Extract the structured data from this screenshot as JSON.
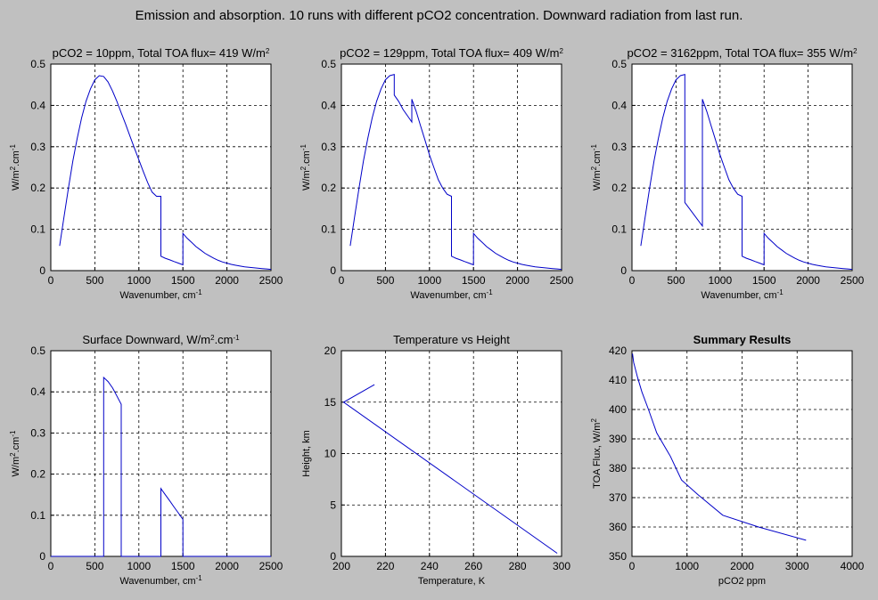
{
  "figure": {
    "title": "Emission and absorption. 10 runs with different pCO2 concentration. Downward radiation from last run."
  },
  "chart_data": [
    {
      "type": "line",
      "title": "pCO2 = 10ppm, Total TOA flux= 419 W/m",
      "title_sup": "2",
      "xlabel": "Wavenumber, cm",
      "xlabel_sup": "-1",
      "ylabel": "W/m",
      "ylabel_sup": "2",
      "ylabel_rest": ".cm",
      "ylabel_sup2": "-1",
      "xlim": [
        0,
        2500
      ],
      "ylim": [
        0,
        0.5
      ],
      "xticks": [
        "0",
        "500",
        "1000",
        "1500",
        "2000",
        "2500"
      ],
      "yticks": [
        "0",
        "0.1",
        "0.2",
        "0.3",
        "0.4",
        "0.5"
      ],
      "grid": true,
      "color": "#0000c8",
      "x": [
        100,
        150,
        200,
        250,
        300,
        350,
        400,
        450,
        500,
        550,
        600,
        650,
        700,
        750,
        800,
        850,
        900,
        950,
        1000,
        1050,
        1100,
        1150,
        1200,
        1250,
        1250,
        1300,
        1350,
        1400,
        1450,
        1500,
        1500,
        1550,
        1600,
        1650,
        1700,
        1750,
        1800,
        1850,
        1900,
        1950,
        2000,
        2050,
        2100,
        2150,
        2200,
        2250,
        2300,
        2350,
        2400,
        2450,
        2500
      ],
      "y": [
        0.06,
        0.13,
        0.2,
        0.265,
        0.32,
        0.37,
        0.41,
        0.44,
        0.462,
        0.472,
        0.47,
        0.457,
        0.435,
        0.41,
        0.382,
        0.354,
        0.325,
        0.296,
        0.268,
        0.24,
        0.213,
        0.19,
        0.18,
        0.18,
        0.035,
        0.03,
        0.026,
        0.022,
        0.018,
        0.014,
        0.09,
        0.078,
        0.068,
        0.058,
        0.05,
        0.042,
        0.036,
        0.03,
        0.025,
        0.021,
        0.018,
        0.015,
        0.013,
        0.011,
        0.009,
        0.008,
        0.007,
        0.006,
        0.005,
        0.004,
        0.003
      ]
    },
    {
      "type": "line",
      "title": "pCO2 = 129ppm, Total TOA flux= 409 W/m",
      "title_sup": "2",
      "xlabel": "Wavenumber, cm",
      "xlabel_sup": "-1",
      "ylabel": "W/m",
      "ylabel_sup": "2",
      "ylabel_rest": ".cm",
      "ylabel_sup2": "-1",
      "xlim": [
        0,
        2500
      ],
      "ylim": [
        0,
        0.5
      ],
      "xticks": [
        "0",
        "500",
        "1000",
        "1500",
        "2000",
        "2500"
      ],
      "yticks": [
        "0",
        "0.1",
        "0.2",
        "0.3",
        "0.4",
        "0.5"
      ],
      "grid": true,
      "color": "#0000c8",
      "x": [
        100,
        150,
        200,
        250,
        300,
        350,
        400,
        450,
        500,
        550,
        600,
        600,
        650,
        700,
        750,
        800,
        800,
        850,
        900,
        950,
        1000,
        1050,
        1100,
        1150,
        1200,
        1250,
        1250,
        1300,
        1350,
        1400,
        1450,
        1500,
        1500,
        1550,
        1600,
        1650,
        1700,
        1750,
        1800,
        1850,
        1900,
        1950,
        2000,
        2050,
        2100,
        2150,
        2200,
        2250,
        2300,
        2350,
        2400,
        2450,
        2500
      ],
      "y": [
        0.06,
        0.13,
        0.2,
        0.265,
        0.32,
        0.37,
        0.41,
        0.44,
        0.462,
        0.472,
        0.475,
        0.425,
        0.41,
        0.39,
        0.375,
        0.36,
        0.415,
        0.385,
        0.35,
        0.315,
        0.28,
        0.25,
        0.22,
        0.2,
        0.185,
        0.18,
        0.035,
        0.03,
        0.026,
        0.022,
        0.018,
        0.014,
        0.09,
        0.078,
        0.068,
        0.058,
        0.05,
        0.042,
        0.036,
        0.03,
        0.025,
        0.021,
        0.018,
        0.015,
        0.013,
        0.011,
        0.009,
        0.008,
        0.007,
        0.006,
        0.005,
        0.004,
        0.003
      ]
    },
    {
      "type": "line",
      "title": "pCO2 = 3162ppm, Total TOA flux= 355 W/m",
      "title_sup": "2",
      "xlabel": "Wavenumber, cm",
      "xlabel_sup": "-1",
      "ylabel": "W/m",
      "ylabel_sup": "2",
      "ylabel_rest": ".cm",
      "ylabel_sup2": "-1",
      "xlim": [
        0,
        2500
      ],
      "ylim": [
        0,
        0.5
      ],
      "xticks": [
        "0",
        "500",
        "1000",
        "1500",
        "2000",
        "2500"
      ],
      "yticks": [
        "0",
        "0.1",
        "0.2",
        "0.3",
        "0.4",
        "0.5"
      ],
      "grid": true,
      "color": "#0000c8",
      "x": [
        100,
        150,
        200,
        250,
        300,
        350,
        400,
        450,
        500,
        550,
        600,
        600,
        800,
        800,
        850,
        900,
        950,
        1000,
        1050,
        1100,
        1150,
        1200,
        1250,
        1250,
        1300,
        1350,
        1400,
        1450,
        1500,
        1500,
        1550,
        1600,
        1650,
        1700,
        1750,
        1800,
        1850,
        1900,
        1950,
        2000,
        2050,
        2100,
        2150,
        2200,
        2250,
        2300,
        2350,
        2400,
        2450,
        2500
      ],
      "y": [
        0.06,
        0.13,
        0.2,
        0.265,
        0.32,
        0.37,
        0.41,
        0.44,
        0.462,
        0.472,
        0.475,
        0.165,
        0.108,
        0.415,
        0.385,
        0.35,
        0.315,
        0.28,
        0.25,
        0.22,
        0.2,
        0.185,
        0.18,
        0.035,
        0.03,
        0.026,
        0.022,
        0.018,
        0.014,
        0.09,
        0.078,
        0.068,
        0.058,
        0.05,
        0.042,
        0.036,
        0.03,
        0.025,
        0.021,
        0.018,
        0.015,
        0.013,
        0.011,
        0.009,
        0.008,
        0.007,
        0.006,
        0.005,
        0.004,
        0.003
      ]
    },
    {
      "type": "line",
      "title": "Surface Downward, W/m",
      "title_sup": "2",
      "title_rest": ".cm",
      "title_sup2": "-1",
      "xlabel": "Wavenumber, cm",
      "xlabel_sup": "-1",
      "ylabel": "W/m",
      "ylabel_sup": "2",
      "ylabel_rest": ".cm",
      "ylabel_sup2": "-1",
      "xlim": [
        0,
        2500
      ],
      "ylim": [
        0,
        0.5
      ],
      "xticks": [
        "0",
        "500",
        "1000",
        "1500",
        "2000",
        "2500"
      ],
      "yticks": [
        "0",
        "0.1",
        "0.2",
        "0.3",
        "0.4",
        "0.5"
      ],
      "grid": true,
      "color": "#0000c8",
      "x": [
        0,
        600,
        600,
        650,
        700,
        750,
        800,
        800,
        1250,
        1250,
        1300,
        1350,
        1400,
        1450,
        1500,
        1500,
        2500
      ],
      "y": [
        0,
        0,
        0.435,
        0.425,
        0.41,
        0.39,
        0.37,
        0,
        0,
        0.165,
        0.15,
        0.135,
        0.12,
        0.105,
        0.09,
        0,
        0
      ]
    },
    {
      "type": "line",
      "title": "Temperature vs Height",
      "xlabel": "Temperature, K",
      "ylabel": "Height, km",
      "xlim": [
        200,
        300
      ],
      "ylim": [
        0,
        20
      ],
      "xticks": [
        "200",
        "220",
        "240",
        "260",
        "280",
        "300"
      ],
      "yticks": [
        "0",
        "5",
        "10",
        "15",
        "20"
      ],
      "grid": true,
      "color": "#0000c8",
      "x": [
        298,
        201,
        215
      ],
      "y": [
        0.3,
        15,
        16.7
      ]
    },
    {
      "type": "line",
      "title": "Summary Results",
      "title_bold": true,
      "xlabel": "pCO2 ppm",
      "ylabel": "TOA Flux, W/m",
      "ylabel_sup": "2",
      "xlim": [
        0,
        4000
      ],
      "ylim": [
        350,
        420
      ],
      "xticks": [
        "0",
        "1000",
        "2000",
        "3000",
        "4000"
      ],
      "yticks": [
        "350",
        "360",
        "370",
        "380",
        "390",
        "400",
        "410",
        "420"
      ],
      "grid": true,
      "color": "#0000c8",
      "x": [
        10,
        30,
        100,
        180,
        300,
        450,
        700,
        900,
        1200,
        1650,
        2300,
        3162
      ],
      "y": [
        419,
        416,
        411,
        406,
        400,
        392,
        384,
        376,
        371,
        364,
        360,
        355.5
      ]
    }
  ]
}
